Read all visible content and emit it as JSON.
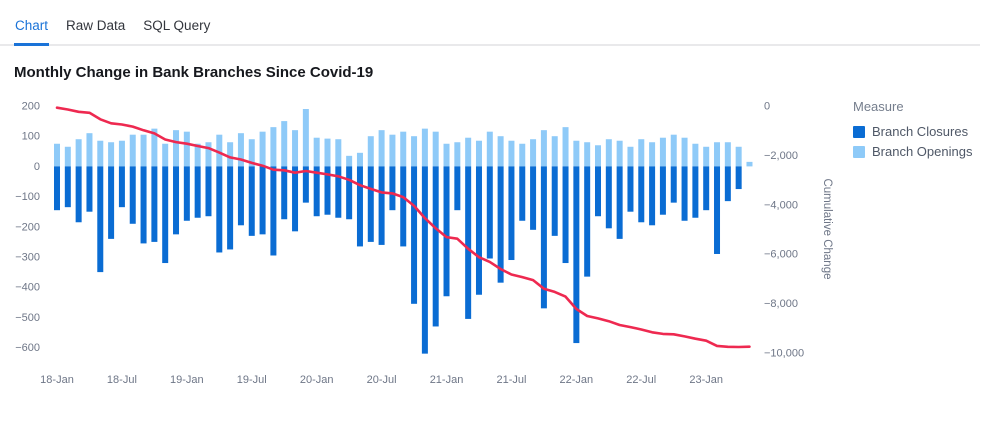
{
  "tabs": [
    {
      "label": "Chart",
      "active": true
    },
    {
      "label": "Raw Data",
      "active": false
    },
    {
      "label": "SQL Query",
      "active": false
    }
  ],
  "title": "Monthly Change in Bank Branches Since Covid-19",
  "legend": {
    "title": "Measure",
    "items": [
      {
        "label": "Branch Closures",
        "color": "#0a6cd3"
      },
      {
        "label": "Branch Openings",
        "color": "#8ecaf8"
      }
    ]
  },
  "colors": {
    "accent": "#1a73d8",
    "closures_bar": "#0a6cd3",
    "openings_bar": "#8ecaf8",
    "cumulative_line": "#ee2950",
    "axis_text": "#6e7687"
  },
  "chart_data": {
    "type": "combo-bar-line",
    "title": "Monthly Change in Bank Branches Since Covid-19",
    "x_months": [
      "2018-01",
      "2018-02",
      "2018-03",
      "2018-04",
      "2018-05",
      "2018-06",
      "2018-07",
      "2018-08",
      "2018-09",
      "2018-10",
      "2018-11",
      "2018-12",
      "2019-01",
      "2019-02",
      "2019-03",
      "2019-04",
      "2019-05",
      "2019-06",
      "2019-07",
      "2019-08",
      "2019-09",
      "2019-10",
      "2019-11",
      "2019-12",
      "2020-01",
      "2020-02",
      "2020-03",
      "2020-04",
      "2020-05",
      "2020-06",
      "2020-07",
      "2020-08",
      "2020-09",
      "2020-10",
      "2020-11",
      "2020-12",
      "2021-01",
      "2021-02",
      "2021-03",
      "2021-04",
      "2021-05",
      "2021-06",
      "2021-07",
      "2021-08",
      "2021-09",
      "2021-10",
      "2021-11",
      "2021-12",
      "2022-01",
      "2022-02",
      "2022-03",
      "2022-04",
      "2022-05",
      "2022-06",
      "2022-07",
      "2022-08",
      "2022-09",
      "2022-10",
      "2022-11",
      "2022-12",
      "2023-01",
      "2023-02",
      "2023-03",
      "2023-04",
      "2023-05"
    ],
    "x_ticks": [
      {
        "index": 0,
        "label": "18-Jan"
      },
      {
        "index": 6,
        "label": "18-Jul"
      },
      {
        "index": 12,
        "label": "19-Jan"
      },
      {
        "index": 18,
        "label": "19-Jul"
      },
      {
        "index": 24,
        "label": "20-Jan"
      },
      {
        "index": 30,
        "label": "20-Jul"
      },
      {
        "index": 36,
        "label": "21-Jan"
      },
      {
        "index": 42,
        "label": "21-Jul"
      },
      {
        "index": 48,
        "label": "22-Jan"
      },
      {
        "index": 54,
        "label": "22-Jul"
      },
      {
        "index": 60,
        "label": "23-Jan"
      }
    ],
    "series": [
      {
        "name": "Branch Closures",
        "type": "bar",
        "axis": "left",
        "color": "#0a6cd3",
        "values": [
          -145,
          -135,
          -185,
          -150,
          -350,
          -240,
          -135,
          -190,
          -255,
          -250,
          -320,
          -225,
          -180,
          -170,
          -165,
          -285,
          -275,
          -195,
          -230,
          -225,
          -295,
          -175,
          -215,
          -120,
          -165,
          -160,
          -170,
          -175,
          -265,
          -250,
          -260,
          -145,
          -265,
          -455,
          -620,
          -530,
          -430,
          -145,
          -505,
          -425,
          -305,
          -385,
          -310,
          -180,
          -210,
          -470,
          -230,
          -320,
          -585,
          -365,
          -165,
          -205,
          -240,
          -150,
          -185,
          -195,
          -160,
          -120,
          -180,
          -170,
          -145,
          -290,
          -115,
          -75,
          0
        ]
      },
      {
        "name": "Branch Openings",
        "type": "bar",
        "axis": "left",
        "color": "#8ecaf8",
        "values": [
          75,
          65,
          90,
          110,
          85,
          80,
          85,
          105,
          105,
          125,
          75,
          120,
          115,
          75,
          80,
          105,
          80,
          110,
          90,
          115,
          130,
          150,
          120,
          190,
          95,
          92,
          90,
          35,
          45,
          100,
          120,
          105,
          115,
          100,
          125,
          115,
          75,
          80,
          95,
          85,
          115,
          100,
          85,
          75,
          90,
          120,
          100,
          130,
          85,
          80,
          70,
          90,
          85,
          65,
          90,
          80,
          95,
          105,
          95,
          75,
          65,
          80,
          80,
          65,
          15
        ]
      },
      {
        "name": "Cumulative Change",
        "type": "line",
        "axis": "right",
        "color": "#ee2950",
        "values": [
          -70,
          -140,
          -235,
          -275,
          -540,
          -700,
          -750,
          -835,
          -985,
          -1110,
          -1355,
          -1460,
          -1525,
          -1620,
          -1705,
          -1885,
          -2080,
          -2165,
          -2305,
          -2415,
          -2580,
          -2605,
          -2700,
          -2630,
          -2700,
          -2768,
          -2848,
          -2988,
          -3208,
          -3358,
          -3498,
          -3538,
          -3688,
          -4043,
          -4538,
          -4953,
          -5308,
          -5373,
          -5783,
          -6123,
          -6313,
          -6598,
          -6823,
          -6928,
          -7048,
          -7398,
          -7528,
          -7718,
          -8218,
          -8503,
          -8598,
          -8713,
          -8868,
          -8953,
          -9048,
          -9163,
          -9228,
          -9243,
          -9328,
          -9423,
          -9503,
          -9713,
          -9748,
          -9758,
          -9743
        ]
      }
    ],
    "left_axis": {
      "range": [
        -620,
        220
      ],
      "ticks": [
        {
          "v": 200,
          "label": "200"
        },
        {
          "v": 100,
          "label": "100"
        },
        {
          "v": 0,
          "label": "0"
        },
        {
          "v": -100,
          "label": "−100"
        },
        {
          "v": -200,
          "label": "−200"
        },
        {
          "v": -300,
          "label": "−300"
        },
        {
          "v": -400,
          "label": "−400"
        },
        {
          "v": -500,
          "label": "−500"
        },
        {
          "v": -600,
          "label": "−600"
        }
      ]
    },
    "right_axis": {
      "label": "Cumulative Change",
      "range": [
        -10200,
        200
      ],
      "ticks": [
        {
          "v": 0,
          "label": "0"
        },
        {
          "v": -2000,
          "label": "−2,000"
        },
        {
          "v": -4000,
          "label": "−4,000"
        },
        {
          "v": -6000,
          "label": "−6,000"
        },
        {
          "v": -8000,
          "label": "−8,000"
        },
        {
          "v": -10000,
          "label": "−10,000"
        }
      ]
    },
    "grid": false,
    "legend_position": "right"
  }
}
